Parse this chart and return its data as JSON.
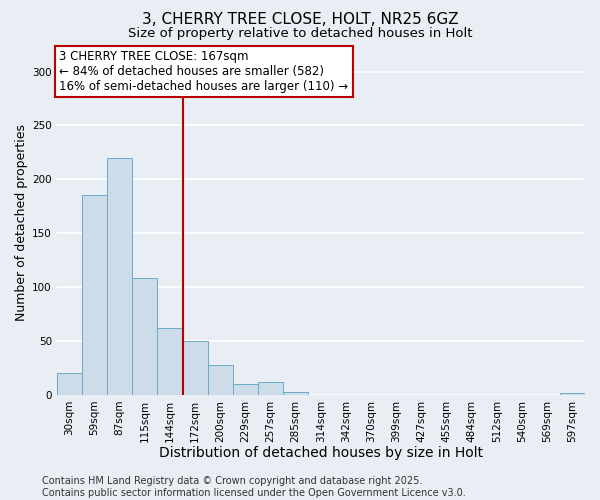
{
  "title_line1": "3, CHERRY TREE CLOSE, HOLT, NR25 6GZ",
  "title_line2": "Size of property relative to detached houses in Holt",
  "categories": [
    "30sqm",
    "59sqm",
    "87sqm",
    "115sqm",
    "144sqm",
    "172sqm",
    "200sqm",
    "229sqm",
    "257sqm",
    "285sqm",
    "314sqm",
    "342sqm",
    "370sqm",
    "399sqm",
    "427sqm",
    "455sqm",
    "484sqm",
    "512sqm",
    "540sqm",
    "569sqm",
    "597sqm"
  ],
  "values": [
    20,
    185,
    220,
    108,
    62,
    50,
    28,
    10,
    12,
    3,
    0,
    0,
    0,
    0,
    0,
    0,
    0,
    0,
    0,
    0,
    2
  ],
  "bar_color": "#ccdce8",
  "bar_edge_color": "#6aaac8",
  "vline_color": "#bb0000",
  "annotation_text": "3 CHERRY TREE CLOSE: 167sqm\n← 84% of detached houses are smaller (582)\n16% of semi-detached houses are larger (110) →",
  "annotation_box_facecolor": "#ffffff",
  "annotation_box_edgecolor": "#bb0000",
  "xlabel": "Distribution of detached houses by size in Holt",
  "ylabel": "Number of detached properties",
  "ylim": [
    0,
    320
  ],
  "yticks": [
    0,
    50,
    100,
    150,
    200,
    250,
    300
  ],
  "footnote": "Contains HM Land Registry data © Crown copyright and database right 2025.\nContains public sector information licensed under the Open Government Licence v3.0.",
  "plot_bg_color": "#e8eef4",
  "fig_bg_color": "#e8eef4",
  "grid_color": "#ffffff",
  "title_fontsize": 11,
  "subtitle_fontsize": 9.5,
  "xlabel_fontsize": 10,
  "ylabel_fontsize": 9,
  "tick_fontsize": 7.5,
  "annotation_fontsize": 8.5,
  "footnote_fontsize": 7
}
